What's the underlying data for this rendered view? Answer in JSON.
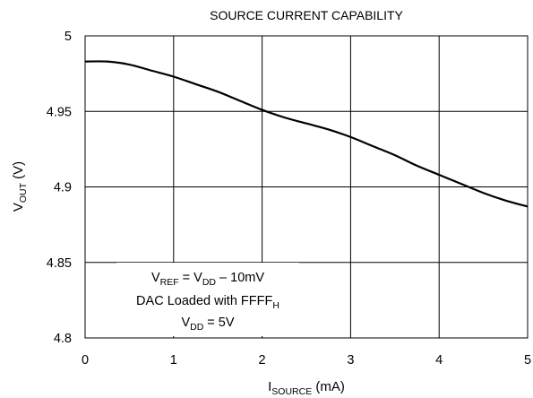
{
  "chart_data": {
    "type": "line",
    "title": "SOURCE CURRENT CAPABILITY",
    "xlabel": {
      "main": "I",
      "sub": "SOURCE",
      "rest": " (mA)"
    },
    "ylabel": {
      "main": "V",
      "sub": "OUT",
      "rest": " (V)"
    },
    "xlim": [
      0,
      5
    ],
    "ylim": [
      4.8,
      5
    ],
    "x_ticks": [
      0,
      1,
      2,
      3,
      4,
      5
    ],
    "x_tick_labels": [
      "0",
      "1",
      "2",
      "3",
      "4",
      "5"
    ],
    "y_ticks": [
      4.8,
      4.85,
      4.9,
      4.95,
      5
    ],
    "y_tick_labels": [
      "4.8",
      "4.85",
      "4.9",
      "4.95",
      "5"
    ],
    "grid": true,
    "annotation": [
      [
        {
          "t": "V",
          "sub": false
        },
        {
          "t": "REF",
          "sub": true
        },
        {
          "t": " = V",
          "sub": false
        },
        {
          "t": "DD",
          "sub": true
        },
        {
          "t": " – 10mV",
          "sub": false
        }
      ],
      [
        {
          "t": "DAC Loaded with FFFF",
          "sub": false
        },
        {
          "t": "H",
          "sub": true
        }
      ],
      [
        {
          "t": "V",
          "sub": false
        },
        {
          "t": "DD",
          "sub": true
        },
        {
          "t": " = 5V",
          "sub": false
        }
      ]
    ],
    "series": [
      {
        "x": [
          0,
          0.25,
          0.5,
          0.75,
          1.0,
          1.25,
          1.5,
          1.75,
          2.0,
          2.25,
          2.5,
          2.75,
          3.0,
          3.25,
          3.5,
          3.75,
          4.0,
          4.25,
          4.5,
          4.75,
          5.0
        ],
        "y": [
          4.983,
          4.983,
          4.981,
          4.977,
          4.973,
          4.968,
          4.963,
          4.957,
          4.951,
          4.946,
          4.942,
          4.938,
          4.933,
          4.927,
          4.921,
          4.914,
          4.908,
          4.902,
          4.896,
          4.891,
          4.887
        ]
      }
    ]
  }
}
